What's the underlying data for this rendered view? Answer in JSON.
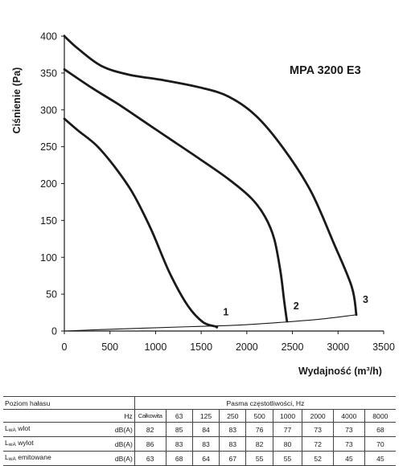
{
  "chart_data": {
    "type": "line",
    "title": "MPA 3200 E3",
    "xlabel": "Wydajność (m³/h)",
    "ylabel": "Ciśnienie (Pa)",
    "xlim": [
      0,
      3500
    ],
    "ylim": [
      0,
      400
    ],
    "xticks": [
      0,
      500,
      1000,
      1500,
      2000,
      2500,
      3000,
      3500
    ],
    "yticks": [
      0,
      50,
      100,
      150,
      200,
      250,
      300,
      350,
      400
    ],
    "grid": false,
    "series": [
      {
        "name": "1",
        "points": [
          [
            0,
            288
          ],
          [
            150,
            272
          ],
          [
            350,
            252
          ],
          [
            550,
            223
          ],
          [
            750,
            187
          ],
          [
            950,
            138
          ],
          [
            1150,
            80
          ],
          [
            1350,
            35
          ],
          [
            1520,
            12
          ],
          [
            1660,
            6
          ],
          [
            1670,
            5
          ]
        ]
      },
      {
        "name": "2",
        "points": [
          [
            0,
            355
          ],
          [
            300,
            330
          ],
          [
            600,
            307
          ],
          [
            900,
            282
          ],
          [
            1200,
            257
          ],
          [
            1500,
            232
          ],
          [
            1800,
            206
          ],
          [
            2050,
            180
          ],
          [
            2200,
            155
          ],
          [
            2300,
            125
          ],
          [
            2370,
            80
          ],
          [
            2410,
            40
          ],
          [
            2440,
            13
          ]
        ]
      },
      {
        "name": "3",
        "points": [
          [
            0,
            400
          ],
          [
            150,
            383
          ],
          [
            400,
            360
          ],
          [
            700,
            348
          ],
          [
            1100,
            340
          ],
          [
            1500,
            330
          ],
          [
            1800,
            318
          ],
          [
            2100,
            292
          ],
          [
            2400,
            248
          ],
          [
            2700,
            190
          ],
          [
            2950,
            120
          ],
          [
            3150,
            60
          ],
          [
            3200,
            22
          ]
        ]
      },
      {
        "name": "",
        "points": [
          [
            0,
            0
          ],
          [
            400,
            2
          ],
          [
            900,
            4
          ],
          [
            1400,
            6
          ],
          [
            1900,
            8
          ],
          [
            2400,
            12
          ],
          [
            2800,
            16
          ],
          [
            3200,
            22
          ]
        ]
      }
    ]
  },
  "noise_table": {
    "title": "Poziom hałasu",
    "bands_title": "Pasma częstotliwości, Hz",
    "hz_label": "Hz",
    "columns": [
      "Całkowita",
      "63",
      "125",
      "250",
      "500",
      "1000",
      "2000",
      "4000",
      "8000"
    ],
    "rows": [
      {
        "label_main": "L",
        "label_sub": "wA",
        "label_rest": " wlot",
        "unit": "dB(A)",
        "values": [
          "82",
          "85",
          "84",
          "83",
          "76",
          "77",
          "73",
          "73",
          "68"
        ]
      },
      {
        "label_main": "L",
        "label_sub": "wA",
        "label_rest": " wylot",
        "unit": "dB(A)",
        "values": [
          "86",
          "83",
          "83",
          "83",
          "82",
          "80",
          "72",
          "73",
          "70"
        ]
      },
      {
        "label_main": "L",
        "label_sub": "wA",
        "label_rest": " emitowane",
        "unit": "dB(A)",
        "values": [
          "63",
          "68",
          "64",
          "67",
          "55",
          "55",
          "52",
          "45",
          "45"
        ]
      }
    ]
  }
}
